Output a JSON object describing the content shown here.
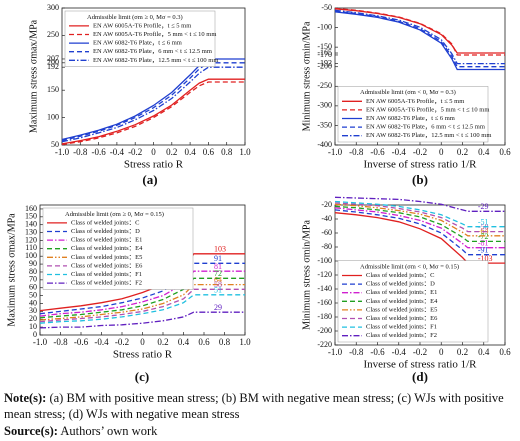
{
  "chart_data": [
    {
      "type": "line",
      "panel_label": "(a)",
      "xlabel": "Stress ratio R",
      "ylabel": "Maximum stress σmax/MPa",
      "legend_title": "Admissible limit (σm ≥ 0, Mσ = 0.3)",
      "legend": "upper left",
      "x": [
        -1,
        -0.8,
        -0.6,
        -0.4,
        -0.2,
        0,
        0.2,
        0.4,
        0.5,
        0.6,
        0.8,
        1
      ],
      "xlim": [
        -1,
        1
      ],
      "xticks": [
        {
          "value": -1,
          "label": "-1.0"
        },
        -0.8,
        -0.6,
        -0.4,
        -0.2,
        0,
        0.2,
        0.4,
        0.6,
        0.8,
        {
          "value": 1,
          "label": "1.0"
        }
      ],
      "ylim": [
        50,
        300
      ],
      "yticks": [
        50,
        100,
        150,
        192,
        200,
        207,
        250,
        300
      ],
      "series": [
        {
          "name": "EN AW 6005A-T6  Profile，t ≤ 5 mm",
          "color": "#e02020",
          "dash": "solid",
          "values": [
            52,
            58,
            65,
            75,
            87,
            103,
            123,
            150,
            163,
            170,
            170,
            170
          ]
        },
        {
          "name": "EN AW 6005A-T6  Profile，5 mm < t ≤ 10 mm",
          "color": "#e02020",
          "dash": "dashed",
          "values": [
            51,
            56,
            63,
            72,
            84,
            100,
            120,
            146,
            158,
            165,
            165,
            165
          ]
        },
        {
          "name": "EN AW 6082-T6  Plate，t ≤ 6 mm",
          "color": "#1f3fd0",
          "dash": "solid",
          "values": [
            60,
            68,
            77,
            88,
            103,
            122,
            146,
            178,
            195,
            207,
            207,
            207
          ]
        },
        {
          "name": "EN AW 6082-T6  Plate，6 mm < t ≤ 12.5 mm",
          "color": "#1f3fd0",
          "dash": "dashed",
          "values": [
            58,
            66,
            75,
            86,
            100,
            118,
            141,
            172,
            189,
            200,
            200,
            200
          ]
        },
        {
          "name": "EN AW 6082-T6  Plate，12.5 mm < t ≤ 100 mm",
          "color": "#1f3fd0",
          "dash": "dashdot",
          "values": [
            56,
            63,
            72,
            82,
            96,
            113,
            135,
            165,
            181,
            192,
            192,
            192
          ]
        }
      ]
    },
    {
      "type": "line",
      "panel_label": "(b)",
      "xlabel": "Inverse of stress ratio 1/R",
      "ylabel": "Minimum stress σmin/MPa",
      "legend_title": "Admissible limit (σm < 0, Mσ = 0.3)",
      "legend": "lower left",
      "x": [
        -1,
        -0.8,
        -0.6,
        -0.4,
        -0.2,
        0,
        0.1,
        0.15,
        0.3,
        0.45,
        0.6
      ],
      "xlim": [
        -1,
        0.6
      ],
      "xticks": [
        {
          "value": -1,
          "label": "-1.0"
        },
        -0.8,
        -0.6,
        -0.4,
        -0.2,
        0,
        0.2,
        0.4,
        0.6
      ],
      "ylim": [
        -400,
        -50
      ],
      "yticks": [
        -400,
        -350,
        -300,
        -250,
        -200,
        -192,
        -170,
        -165,
        -150,
        -100,
        -50
      ],
      "series": [
        {
          "name": "EN AW 6005A-T6  Profile，t ≤ 5 mm",
          "color": "#e02020",
          "dash": "solid",
          "values": [
            -52,
            -57,
            -64,
            -74,
            -90,
            -118,
            -145,
            -165,
            -165,
            -165,
            -165
          ]
        },
        {
          "name": "EN AW 6005A-T6  Profile，5 mm < t ≤ 10 mm",
          "color": "#e02020",
          "dash": "dashed",
          "values": [
            -51,
            -56,
            -63,
            -73,
            -89,
            -116,
            -142,
            -170,
            -170,
            -170,
            -170
          ]
        },
        {
          "name": "EN AW 6082-T6  Plate，t ≤ 6 mm",
          "color": "#1f3fd0",
          "dash": "solid",
          "values": [
            -60,
            -66,
            -74,
            -86,
            -106,
            -140,
            -180,
            -207,
            -207,
            -207,
            -207
          ]
        },
        {
          "name": "EN AW 6082-T6  Plate，6 mm < t ≤ 12.5 mm",
          "color": "#1f3fd0",
          "dash": "dashed",
          "values": [
            -58,
            -64,
            -72,
            -84,
            -103,
            -136,
            -174,
            -200,
            -200,
            -200,
            -200
          ]
        },
        {
          "name": "EN AW 6082-T6  Plate，12.5 mm < t ≤ 100 mm",
          "color": "#1f3fd0",
          "dash": "dashdot",
          "values": [
            -56,
            -62,
            -70,
            -81,
            -99,
            -131,
            -167,
            -192,
            -192,
            -192,
            -192
          ]
        }
      ]
    },
    {
      "type": "line",
      "panel_label": "(c)",
      "xlabel": "Stress ratio R",
      "ylabel": "Maximum stress σmax/MPa",
      "legend_title": "Admissible limit (σm ≥ 0, Mσ = 0.15)",
      "legend": "upper left",
      "data_labels": true,
      "x": [
        -1,
        -0.8,
        -0.6,
        -0.4,
        -0.2,
        0,
        0.2,
        0.4,
        0.5,
        0.6,
        0.8,
        1
      ],
      "xlim": [
        -1,
        1
      ],
      "xticks": [
        {
          "value": -1,
          "label": "-1.0"
        },
        -0.8,
        -0.6,
        -0.4,
        -0.2,
        0,
        0.2,
        0.4,
        0.6,
        0.8,
        {
          "value": 1,
          "label": "1.0"
        }
      ],
      "ylim": [
        0,
        165
      ],
      "yticks": [
        0,
        10,
        20,
        30,
        40,
        50,
        60,
        70,
        80,
        90,
        100,
        110,
        120,
        130,
        140,
        150,
        160
      ],
      "series": [
        {
          "name": "Class of welded joints：C",
          "color": "#e02020",
          "dash": "solid",
          "values": [
            31,
            34,
            37,
            41,
            46,
            54,
            64,
            82,
            103,
            103,
            103,
            103
          ]
        },
        {
          "name": "Class of welded joints：D",
          "color": "#1f3fd0",
          "dash": "dashed",
          "values": [
            27,
            30,
            33,
            36,
            41,
            47,
            56,
            73,
            91,
            91,
            91,
            91
          ]
        },
        {
          "name": "Class of welded joints：E1",
          "color": "#d020d0",
          "dash": "dashdot",
          "values": [
            24,
            27,
            29,
            32,
            36,
            42,
            50,
            65,
            81,
            81,
            81,
            81
          ]
        },
        {
          "name": "Class of welded joints：E4",
          "color": "#20a020",
          "dash": "dashed",
          "values": [
            22,
            24,
            26,
            29,
            32,
            37,
            45,
            58,
            72,
            72,
            72,
            72
          ]
        },
        {
          "name": "Class of welded joints：E5",
          "color": "#e08020",
          "dash": "dashdotdot",
          "values": [
            19,
            21,
            23,
            26,
            29,
            33,
            40,
            51,
            64,
            64,
            64,
            64
          ]
        },
        {
          "name": "Class of welded joints：E6",
          "color": "#b050b0",
          "dash": "dashed",
          "values": [
            17,
            19,
            21,
            23,
            26,
            30,
            36,
            46,
            58,
            58,
            58,
            58
          ]
        },
        {
          "name": "Class of welded joints：F1",
          "color": "#20c0e0",
          "dash": "dashed",
          "values": [
            15,
            17,
            18,
            20,
            23,
            27,
            32,
            41,
            51,
            51,
            51,
            51
          ]
        },
        {
          "name": "Class of welded joints：F2",
          "color": "#6020c0",
          "dash": "dashdot",
          "values": [
            9,
            10,
            10,
            12,
            13,
            15,
            18,
            23,
            29,
            29,
            29,
            29
          ]
        }
      ]
    },
    {
      "type": "line",
      "panel_label": "(d)",
      "xlabel": "Inverse of stress ratio 1/R",
      "ylabel": "Minimum stress σmin/MPa",
      "legend_title": "Admissible limit (σm < 0, Mσ = 0.15)",
      "legend": "lower left",
      "data_labels": true,
      "x": [
        -1,
        -0.8,
        -0.6,
        -0.4,
        -0.2,
        0,
        0.2,
        0.25,
        0.4,
        0.6
      ],
      "xlim": [
        -1,
        0.6
      ],
      "xticks": [
        {
          "value": -1,
          "label": "-1.0"
        },
        -0.8,
        -0.6,
        -0.4,
        -0.2,
        0,
        0.2,
        0.4,
        0.6
      ],
      "ylim": [
        -220,
        -20
      ],
      "yticks": [
        -220,
        -200,
        -180,
        -160,
        -140,
        -120,
        -100,
        -80,
        -60,
        -40,
        -20
      ],
      "series": [
        {
          "name": "Class of welded joints：C",
          "color": "#e02020",
          "dash": "solid",
          "values": [
            -31,
            -34,
            -38,
            -44,
            -54,
            -68,
            -95,
            -103,
            -103,
            -103
          ]
        },
        {
          "name": "Class of welded joints：D",
          "color": "#1f3fd0",
          "dash": "dashed",
          "values": [
            -27,
            -30,
            -34,
            -39,
            -47,
            -60,
            -84,
            -91,
            -91,
            -91
          ]
        },
        {
          "name": "Class of welded joints：E1",
          "color": "#d020d0",
          "dash": "dashdot",
          "values": [
            -24,
            -27,
            -30,
            -35,
            -42,
            -53,
            -75,
            -81,
            -81,
            -81
          ]
        },
        {
          "name": "Class of welded joints：E4",
          "color": "#20a020",
          "dash": "dashed",
          "values": [
            -22,
            -24,
            -27,
            -31,
            -37,
            -48,
            -66,
            -72,
            -72,
            -72
          ]
        },
        {
          "name": "Class of welded joints：E5",
          "color": "#e08020",
          "dash": "dashdotdot",
          "values": [
            -19,
            -21,
            -24,
            -28,
            -33,
            -42,
            -59,
            -64,
            -64,
            -64
          ]
        },
        {
          "name": "Class of welded joints：E6",
          "color": "#b050b0",
          "dash": "dashed",
          "values": [
            -17,
            -19,
            -21,
            -25,
            -30,
            -38,
            -53,
            -58,
            -58,
            -58
          ]
        },
        {
          "name": "Class of welded joints：F1",
          "color": "#20c0e0",
          "dash": "dashed",
          "values": [
            -15,
            -17,
            -19,
            -22,
            -27,
            -34,
            -47,
            -51,
            -51,
            -51
          ]
        },
        {
          "name": "Class of welded joints：F2",
          "color": "#6020c0",
          "dash": "dashdot",
          "values": [
            -9,
            -10,
            -11,
            -12,
            -15,
            -19,
            -27,
            -29,
            -29,
            -29
          ]
        }
      ]
    }
  ],
  "notes": {
    "label": "Note(s):",
    "text": "(a) BM with positive mean stress; (b) BM with negative mean stress; (c) WJs with positive mean stress; (d) WJs with negative mean stress"
  },
  "source": {
    "label": "Source(s):",
    "text": "Authors’ own work"
  }
}
